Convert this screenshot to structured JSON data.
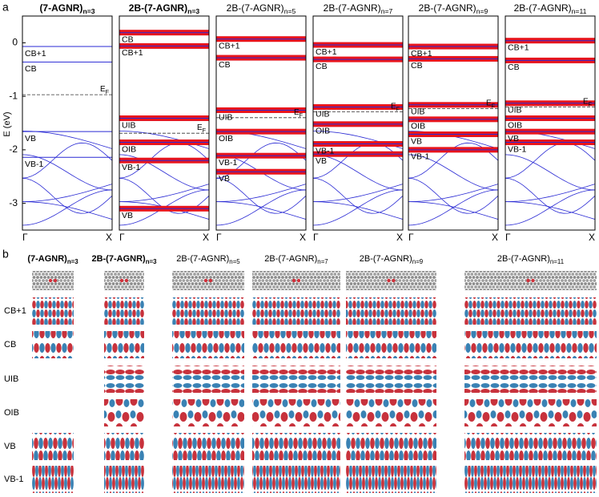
{
  "chart_data": {
    "type": "band_structure",
    "panel_label": "a",
    "ylabel": "E (eV)",
    "ylim": [
      -3.5,
      0.5
    ],
    "yticks": [
      0,
      -1,
      -2,
      -3
    ],
    "xlabels": [
      "Γ",
      "X"
    ],
    "fermi_label": {
      "base": "E",
      "sub": "F"
    },
    "band_color": "#2a2ad4",
    "weight_color": "#e8141c",
    "panels": [
      {
        "title": {
          "base": "(7-AGNR)",
          "sub": "n=3"
        },
        "bold": true,
        "highlight": false,
        "fermi": -0.97,
        "bands": [
          {
            "label": "CB+1",
            "energy": -0.07
          },
          {
            "label": "CB",
            "energy": -0.36
          },
          {
            "label": "VB",
            "energy": -1.66
          },
          {
            "label": "VB-1",
            "energy": -2.14
          }
        ]
      },
      {
        "title": {
          "base": "2B-(7-AGNR)",
          "sub": "n=3"
        },
        "bold": true,
        "highlight": true,
        "fermi": -1.69,
        "bands": [
          {
            "label": "CB",
            "energy": 0.19
          },
          {
            "label": "CB+1",
            "energy": -0.06
          },
          {
            "label": "UIB",
            "energy": -1.41
          },
          {
            "label": "OIB",
            "energy": -1.86
          },
          {
            "label": "VB-1",
            "energy": -2.2
          },
          {
            "label": "VB",
            "energy": -3.1
          }
        ]
      },
      {
        "title": {
          "base": "2B-(7-AGNR)",
          "sub": "n=5"
        },
        "bold": false,
        "highlight": true,
        "fermi": -1.4,
        "bands": [
          {
            "label": "CB+1",
            "energy": 0.07
          },
          {
            "label": "CB",
            "energy": -0.28
          },
          {
            "label": "UIB",
            "energy": -1.26
          },
          {
            "label": "OIB",
            "energy": -1.66
          },
          {
            "label": "VB-1",
            "energy": -2.11
          },
          {
            "label": "VB",
            "energy": -2.41
          }
        ]
      },
      {
        "title": {
          "base": "2B-(7-AGNR)",
          "sub": "n=7"
        },
        "bold": false,
        "highlight": true,
        "fermi": -1.29,
        "bands": [
          {
            "label": "CB+1",
            "energy": -0.04
          },
          {
            "label": "CB",
            "energy": -0.31
          },
          {
            "label": "UIB",
            "energy": -1.2
          },
          {
            "label": "OIB",
            "energy": -1.52
          },
          {
            "label": "VB-1",
            "energy": -1.89
          },
          {
            "label": "VB",
            "energy": -2.08
          }
        ]
      },
      {
        "title": {
          "base": "2B-(7-AGNR)",
          "sub": "n=9"
        },
        "bold": false,
        "highlight": true,
        "fermi": -1.23,
        "bands": [
          {
            "label": "CB+1",
            "energy": -0.07
          },
          {
            "label": "CB",
            "energy": -0.3
          },
          {
            "label": "UIB",
            "energy": -1.16
          },
          {
            "label": "OIB",
            "energy": -1.43
          },
          {
            "label": "VB",
            "energy": -1.71
          },
          {
            "label": "VB-1",
            "energy": -2.0
          }
        ]
      },
      {
        "title": {
          "base": "2B-(7-AGNR)",
          "sub": "n=11"
        },
        "bold": false,
        "highlight": true,
        "fermi": -1.2,
        "bands": [
          {
            "label": "CB+1",
            "energy": 0.04
          },
          {
            "label": "CB",
            "energy": -0.33
          },
          {
            "label": "UIB",
            "energy": -1.13
          },
          {
            "label": "OIB",
            "energy": -1.41
          },
          {
            "label": "VB",
            "energy": -1.66
          },
          {
            "label": "VB-1",
            "energy": -1.86
          }
        ]
      }
    ]
  },
  "orbitals": {
    "panel_label": "b",
    "rows": [
      "CB+1",
      "CB",
      "UIB",
      "OIB",
      "VB",
      "VB-1"
    ]
  }
}
